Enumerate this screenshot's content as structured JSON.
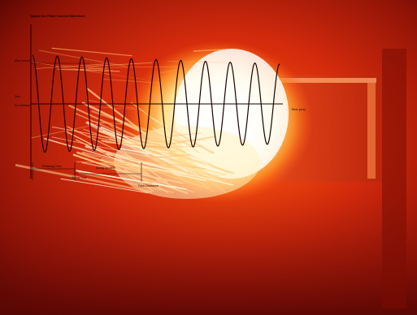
{
  "chart_data": {
    "type": "line",
    "title": "Typical Arc Flash Current Waveform",
    "xlabel": "Time (ms)",
    "ylabel": "",
    "y_ticks": [
      "Max Current",
      "Zero",
      "Arc Initiation"
    ],
    "annotations": [
      "Prearcing Time",
      "Arcing Time",
      "Arcing Duration",
      "Fault Clearance"
    ],
    "series": [
      {
        "name": "",
        "description_free": true,
        "cycles": 10,
        "amplitude_relative": 1.0
      }
    ],
    "ylim": [
      -1,
      1
    ]
  },
  "colors": {
    "background_dark": "#3a0000",
    "fire_red": "#c81a08",
    "fire_orange": "#ff6a10",
    "flash_white": "#fff6d8",
    "line": "#1a0000"
  }
}
